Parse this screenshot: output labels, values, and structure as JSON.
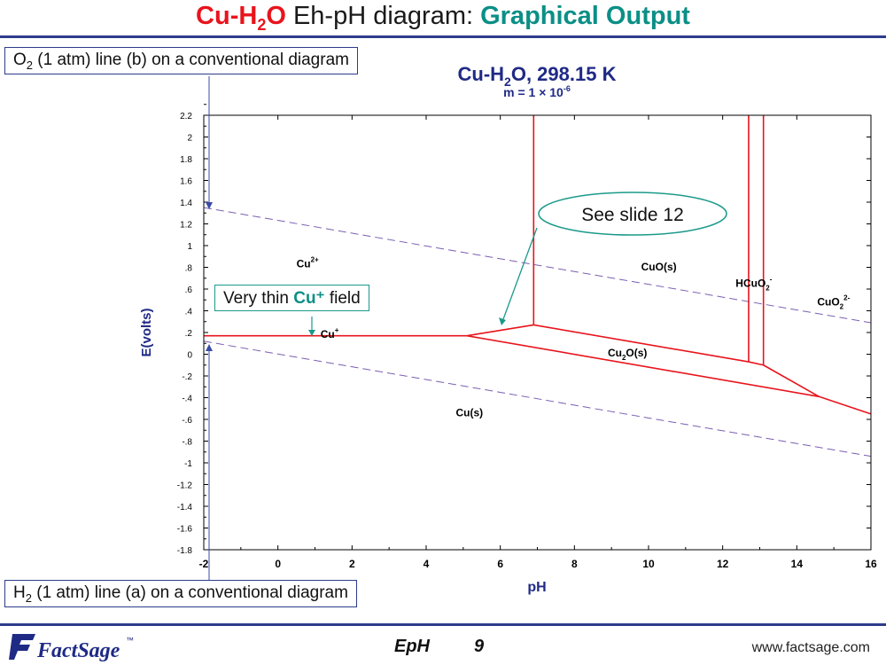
{
  "title": {
    "part1": "Cu-H",
    "part1_sub": "2",
    "part1_end": "O",
    "part2": " Eh-pH diagram: ",
    "part3": "Graphical Output"
  },
  "callouts": {
    "o2": {
      "prefix": "O",
      "sub": "2",
      "rest": " (1 atm) line (b) on a conventional diagram"
    },
    "h2": {
      "prefix": "H",
      "sub": "2",
      "rest": " (1 atm) line (a) on a conventional diagram"
    },
    "thin_cu": {
      "prefix": "Very thin ",
      "highlight": "Cu⁺",
      "suffix": " field"
    },
    "see_slide": "See slide 12"
  },
  "chart_data": {
    "type": "line",
    "title": "Cu-H2O, 298.15 K",
    "title_parts": {
      "a": "Cu-H",
      "a_sub": "2",
      "b": "O, 298.15 K"
    },
    "subtitle": {
      "a": "m = 1 × 10",
      "sup": "-6"
    },
    "xlabel": "pH",
    "ylabel": "E(volts)",
    "xlim": [
      -2,
      16
    ],
    "ylim": [
      -1.8,
      2.2
    ],
    "xticks": [
      -2,
      0,
      2,
      4,
      6,
      8,
      10,
      12,
      14,
      16
    ],
    "xtick_labels": [
      "-2",
      "0",
      "2",
      "4",
      "6",
      "8",
      "10",
      "12",
      "14",
      "16"
    ],
    "yticks": [
      -1.8,
      -1.6,
      -1.4,
      -1.2,
      -1,
      -0.8,
      -0.6,
      -0.4,
      -0.2,
      0,
      0.2,
      0.4,
      0.6,
      0.8,
      1,
      1.2,
      1.4,
      1.6,
      1.8,
      2,
      2.2
    ],
    "ytick_labels": [
      "-1.8",
      "-1.6",
      "-1.4",
      "-1.2",
      "-1",
      "-.8",
      "-.6",
      "-.4",
      "-.2",
      "0",
      ".2",
      ".4",
      ".6",
      ".8",
      "1",
      "1.2",
      "1.4",
      "1.6",
      "1.8",
      "2",
      "2.2"
    ],
    "grid": false,
    "boundaries_color": "#e8141c",
    "water_lines_color": "#7b5fb0",
    "boundaries": [
      {
        "name": "Cu/Cu+ -> Cu/ions",
        "points": [
          [
            -2,
            0.17
          ],
          [
            5.1,
            0.17
          ]
        ]
      },
      {
        "name": "Cu2+/Cu2O",
        "points": [
          [
            5.1,
            0.17
          ],
          [
            6.9,
            0.27
          ]
        ]
      },
      {
        "name": "Cu/Cu2O",
        "points": [
          [
            5.1,
            0.17
          ],
          [
            14.6,
            -0.39
          ],
          [
            16,
            -0.55
          ]
        ]
      },
      {
        "name": "Cu2+/CuO",
        "points": [
          [
            6.9,
            0.27
          ],
          [
            6.9,
            2.2
          ]
        ]
      },
      {
        "name": "CuO/Cu2O",
        "points": [
          [
            6.9,
            0.27
          ],
          [
            12.7,
            -0.07
          ]
        ]
      },
      {
        "name": "CuO/HCuO2-",
        "points": [
          [
            12.7,
            -0.07
          ],
          [
            12.7,
            2.2
          ]
        ]
      },
      {
        "name": "HCuO2-/Cu2O",
        "points": [
          [
            12.7,
            -0.07
          ],
          [
            13.1,
            -0.1
          ]
        ]
      },
      {
        "name": "HCuO2-/CuO2 2-",
        "points": [
          [
            13.1,
            -0.1
          ],
          [
            13.1,
            2.2
          ]
        ]
      },
      {
        "name": "CuO2 2-/Cu2O",
        "points": [
          [
            13.1,
            -0.1
          ],
          [
            14.6,
            -0.39
          ]
        ]
      }
    ],
    "water_lines": [
      {
        "name": "O2",
        "points": [
          [
            -2,
            1.35
          ],
          [
            16,
            0.29
          ]
        ]
      },
      {
        "name": "H2",
        "points": [
          [
            -2,
            0.12
          ],
          [
            16,
            -0.94
          ]
        ]
      }
    ],
    "region_labels": [
      {
        "text": "Cu",
        "sup": "2+",
        "x": 0.5,
        "y": 0.8
      },
      {
        "text": "CuO(s)",
        "x": 9.8,
        "y": 0.77
      },
      {
        "text": "HCuO",
        "sub": "2",
        "sup": "-",
        "x": 12.35,
        "y": 0.62
      },
      {
        "text": "CuO",
        "sub": "2",
        "sup": "2-",
        "x": 14.55,
        "y": 0.45
      },
      {
        "text": "Cu",
        "sup": "+",
        "x": 1.15,
        "y": 0.15
      },
      {
        "text": "Cu",
        "sub": "2",
        "text2": "O(s)",
        "x": 8.9,
        "y": -0.02
      },
      {
        "text": "Cu(s)",
        "x": 4.8,
        "y": -0.57
      }
    ]
  },
  "footer": {
    "logo_text": "FactSage",
    "logo_tm": "™",
    "module": "EpH",
    "page": "9",
    "url": "www.factsage.com"
  }
}
